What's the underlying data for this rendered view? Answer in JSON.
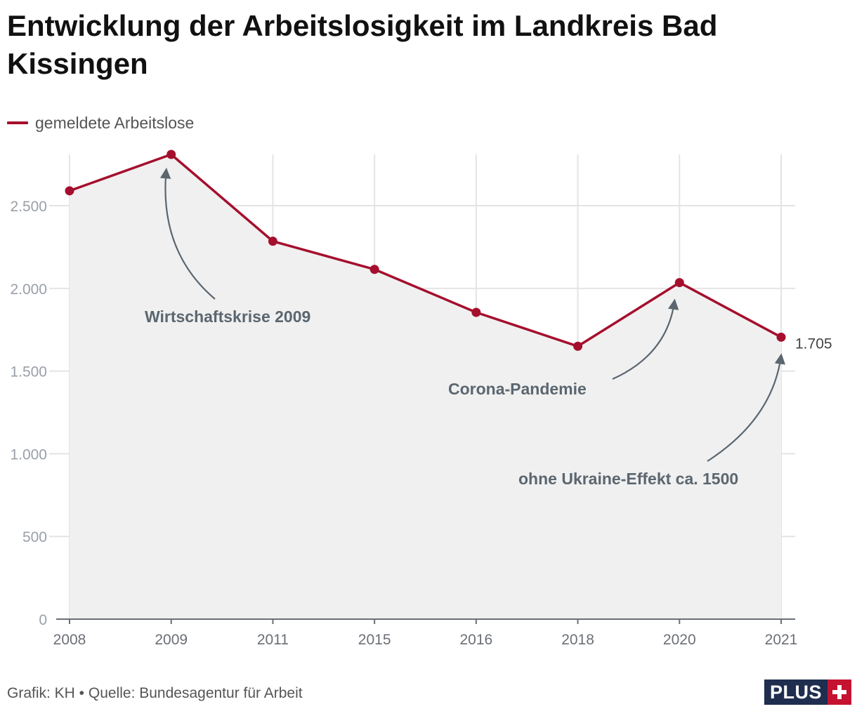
{
  "title": "Entwicklung der Arbeitslosigkeit im Landkreis Bad Kissingen",
  "colors": {
    "line": "#a50f2d",
    "area": "#f0f0f0",
    "grid": "#e4e4e4",
    "axis": "#6a6f78",
    "annotation": "#5b6670"
  },
  "chart_data": {
    "type": "line",
    "title": "Entwicklung der Arbeitslosigkeit im Landkreis Bad Kissingen",
    "xlabel": "",
    "ylabel": "",
    "categories": [
      "2008",
      "2009",
      "2011",
      "2015",
      "2016",
      "2018",
      "2020",
      "2021"
    ],
    "series": [
      {
        "name": "gemeldete Arbeitslose",
        "values": [
          2590,
          2810,
          2285,
          2115,
          1855,
          1650,
          2035,
          1705
        ]
      }
    ],
    "ylim": [
      0,
      2810
    ],
    "yticks": [
      0,
      500,
      1000,
      1500,
      2000,
      2500
    ],
    "ytick_labels": [
      "0",
      "500",
      "1.000",
      "1.500",
      "2.000",
      "2.500"
    ],
    "last_value_label": "1.705",
    "annotations": [
      {
        "text": "Wirtschaftskrise 2009",
        "target_index": 1
      },
      {
        "text": "Corona-Pandemie",
        "target_index": 6
      },
      {
        "text": "ohne Ukraine-Effekt ca. 1500",
        "target_index": 7
      }
    ]
  },
  "footer": {
    "source": "Grafik: KH • Quelle: Bundesagentur für Arbeit"
  },
  "logo": {
    "text": "PLUS"
  }
}
